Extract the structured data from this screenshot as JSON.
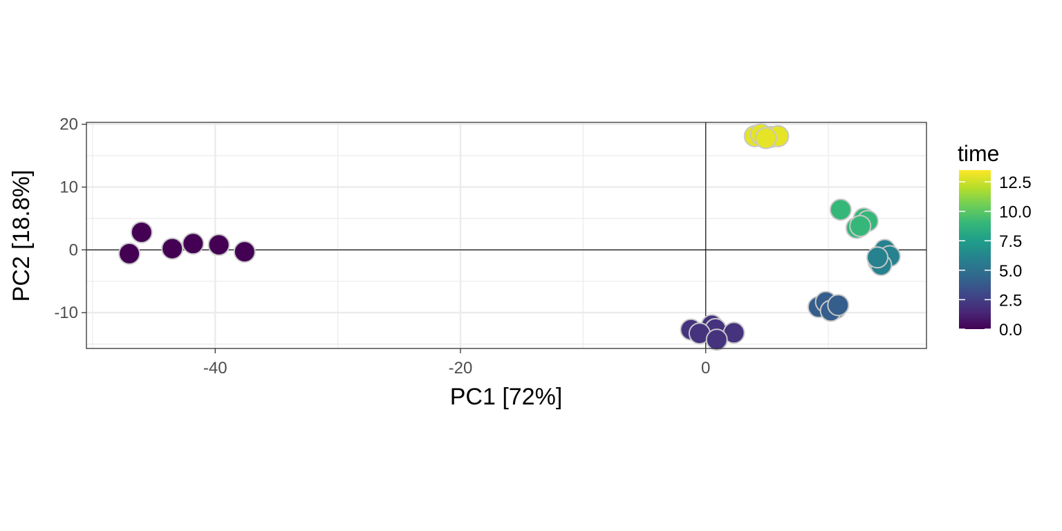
{
  "chart_data": {
    "type": "scatter",
    "xlabel": "PC1 [72%]",
    "ylabel": "PC2 [18.8%]",
    "xlim": [
      -50.5,
      18
    ],
    "ylim": [
      -15.7,
      20.3
    ],
    "x_ticks": [
      -40,
      -20,
      0
    ],
    "x_tick_labels": [
      "-40",
      "-20",
      "0"
    ],
    "y_ticks": [
      -10,
      0,
      10,
      20
    ],
    "y_tick_labels": [
      "-10",
      "0",
      "10",
      "20"
    ],
    "grid": true,
    "reference_lines": {
      "x": 0,
      "y": 0
    },
    "color_by": "time",
    "legend": {
      "title": "time",
      "placement": "right",
      "type": "colorbar",
      "range": [
        0,
        13.5
      ],
      "ticks": [
        0,
        2.5,
        5,
        7.5,
        10,
        12.5
      ],
      "tick_labels": [
        "0.0",
        "2.5",
        "5.0",
        "7.5",
        "10.0",
        "12.5"
      ],
      "palette": "viridis"
    },
    "points": [
      {
        "x": -47.0,
        "y": -0.6,
        "time": 0
      },
      {
        "x": -46.0,
        "y": 2.8,
        "time": 0
      },
      {
        "x": -43.5,
        "y": 0.2,
        "time": 0
      },
      {
        "x": -41.8,
        "y": 1.0,
        "time": 0
      },
      {
        "x": -39.7,
        "y": 0.8,
        "time": 0
      },
      {
        "x": -37.6,
        "y": -0.3,
        "time": 0
      },
      {
        "x": -1.2,
        "y": -12.7,
        "time": 2
      },
      {
        "x": 0.5,
        "y": -12.0,
        "time": 2
      },
      {
        "x": 0.8,
        "y": -12.6,
        "time": 2
      },
      {
        "x": -0.5,
        "y": -13.3,
        "time": 2
      },
      {
        "x": 2.3,
        "y": -13.2,
        "time": 2
      },
      {
        "x": 0.9,
        "y": -14.3,
        "time": 2
      },
      {
        "x": 9.2,
        "y": -9.1,
        "time": 4
      },
      {
        "x": 9.8,
        "y": -8.3,
        "time": 4
      },
      {
        "x": 10.6,
        "y": -9.3,
        "time": 4
      },
      {
        "x": 10.2,
        "y": -9.7,
        "time": 4
      },
      {
        "x": 10.8,
        "y": -8.8,
        "time": 4
      },
      {
        "x": 14.1,
        "y": -1.9,
        "time": 6
      },
      {
        "x": 14.6,
        "y": 0.0,
        "time": 6
      },
      {
        "x": 15.0,
        "y": -1.0,
        "time": 6
      },
      {
        "x": 14.3,
        "y": -2.4,
        "time": 6
      },
      {
        "x": 14.0,
        "y": -1.2,
        "time": 6
      },
      {
        "x": 11.0,
        "y": 6.4,
        "time": 9
      },
      {
        "x": 12.9,
        "y": 5.0,
        "time": 9
      },
      {
        "x": 13.2,
        "y": 4.6,
        "time": 9
      },
      {
        "x": 12.3,
        "y": 3.5,
        "time": 9
      },
      {
        "x": 12.6,
        "y": 3.8,
        "time": 9
      },
      {
        "x": 4.0,
        "y": 18.1,
        "time": 13
      },
      {
        "x": 4.5,
        "y": 18.4,
        "time": 13
      },
      {
        "x": 5.3,
        "y": 18.0,
        "time": 13
      },
      {
        "x": 5.9,
        "y": 18.1,
        "time": 13
      },
      {
        "x": 4.9,
        "y": 17.8,
        "time": 13
      }
    ]
  }
}
